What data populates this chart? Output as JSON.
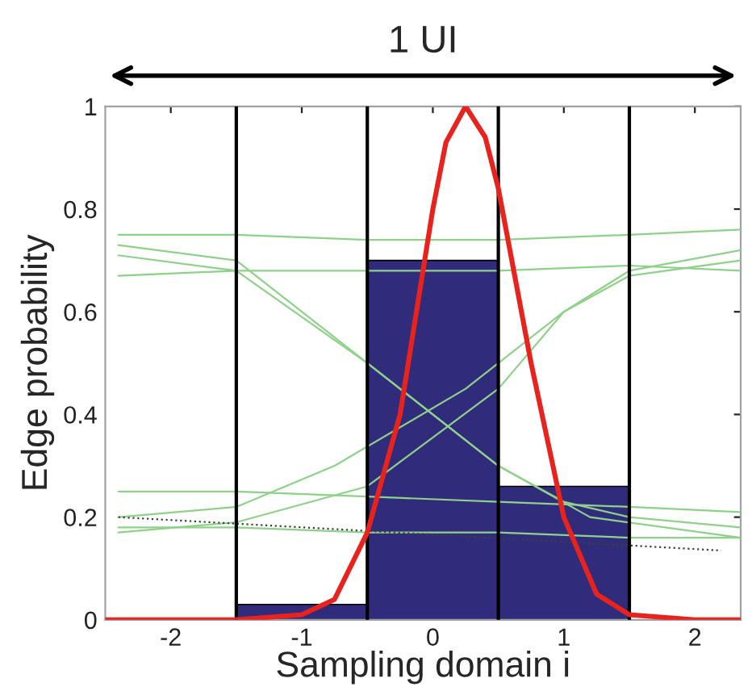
{
  "chart_data": {
    "type": "histogram",
    "xlabel": "Sampling domain i",
    "ylabel": "Edge probability",
    "annotations": [
      "1 UI"
    ],
    "bins": [
      -1.5,
      -0.5,
      0.5,
      1.5
    ],
    "values": [
      0.03,
      0.7,
      0.26
    ],
    "color": "#302b7a",
    "series": [
      {
        "type": "line",
        "color": "#8fd18a",
        "x": [
          -2.4,
          -1.5,
          -0.5,
          0.5,
          1.5,
          2.35
        ],
        "values": [
          0.75,
          0.75,
          0.74,
          0.74,
          0.75,
          0.76
        ]
      },
      {
        "type": "line",
        "color": "#8fd18a",
        "x": [
          -2.4,
          -1.5,
          -0.5,
          0.5,
          1.5,
          2.35
        ],
        "values": [
          0.67,
          0.68,
          0.68,
          0.68,
          0.69,
          0.68
        ]
      },
      {
        "type": "line",
        "color": "#8fd18a",
        "x": [
          -2.4,
          -1.5,
          -1.0,
          -0.25,
          0.5,
          1.2,
          2.35
        ],
        "values": [
          0.73,
          0.7,
          0.6,
          0.45,
          0.3,
          0.2,
          0.16
        ]
      },
      {
        "type": "line",
        "color": "#8fd18a",
        "x": [
          -2.4,
          -1.5,
          -0.5,
          0.5,
          1.0,
          1.5,
          2.35
        ],
        "values": [
          0.71,
          0.68,
          0.5,
          0.3,
          0.23,
          0.2,
          0.18
        ]
      },
      {
        "type": "line",
        "color": "#8fd18a",
        "x": [
          -2.4,
          -1.5,
          -0.75,
          0.25,
          1.0,
          1.5,
          2.35
        ],
        "values": [
          0.2,
          0.22,
          0.3,
          0.45,
          0.6,
          0.68,
          0.72
        ]
      },
      {
        "type": "line",
        "color": "#8fd18a",
        "x": [
          -2.4,
          -1.5,
          -0.5,
          0.5,
          1.0,
          1.5,
          2.35
        ],
        "values": [
          0.17,
          0.19,
          0.26,
          0.45,
          0.6,
          0.67,
          0.7
        ]
      },
      {
        "type": "line",
        "color": "#8fd18a",
        "x": [
          -2.4,
          -1.5,
          -0.5,
          0.5,
          1.5,
          2.35
        ],
        "values": [
          0.25,
          0.25,
          0.24,
          0.23,
          0.22,
          0.21
        ]
      },
      {
        "type": "line",
        "color": "#8fd18a",
        "x": [
          -2.4,
          -1.5,
          -0.5,
          0.5,
          1.5,
          2.35
        ],
        "values": [
          0.18,
          0.18,
          0.17,
          0.17,
          0.16,
          0.16
        ]
      },
      {
        "type": "line",
        "color": "#404040",
        "line_style": "dotted",
        "x": [
          -2.4,
          2.2
        ],
        "values": [
          0.2,
          0.135
        ]
      },
      {
        "type": "line",
        "color": "#e8231e",
        "x": [
          -2.5,
          -1.5,
          -1.0,
          -0.75,
          -0.5,
          -0.25,
          0.0,
          0.1,
          0.25,
          0.4,
          0.5,
          0.75,
          1.0,
          1.25,
          1.5,
          2.0,
          2.35
        ],
        "values": [
          0,
          0,
          0.01,
          0.04,
          0.17,
          0.4,
          0.8,
          0.93,
          1.0,
          0.94,
          0.84,
          0.5,
          0.2,
          0.05,
          0.01,
          0,
          0
        ]
      }
    ],
    "ref_lines": [
      {
        "axis": "x",
        "value": -1.5,
        "color": "#000000"
      },
      {
        "axis": "x",
        "value": -0.5,
        "color": "#000000"
      },
      {
        "axis": "x",
        "value": 0.5,
        "color": "#000000"
      },
      {
        "axis": "x",
        "value": 1.5,
        "color": "#000000"
      }
    ],
    "xlim": [
      -2.5,
      2.35
    ],
    "ylim": [
      0,
      1
    ],
    "xticks": [
      -2,
      -1,
      0,
      1,
      2
    ],
    "yticks": [
      0,
      0.2,
      0.4,
      0.6,
      0.8,
      1
    ]
  }
}
